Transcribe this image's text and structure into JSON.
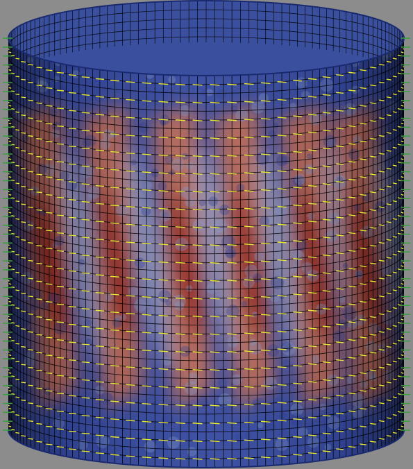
{
  "scene": {
    "object": "cylinder-shell-mesh",
    "background_color": "#8c8c8c",
    "colormap": {
      "low": "#2a3f9a",
      "mid": "#b8c2d6",
      "high": "#8c1a14"
    },
    "mesh_color": "#000000",
    "glyph_colors": {
      "primary": "#e8e83a",
      "secondary": "#3aa040"
    },
    "band_count": 6
  }
}
